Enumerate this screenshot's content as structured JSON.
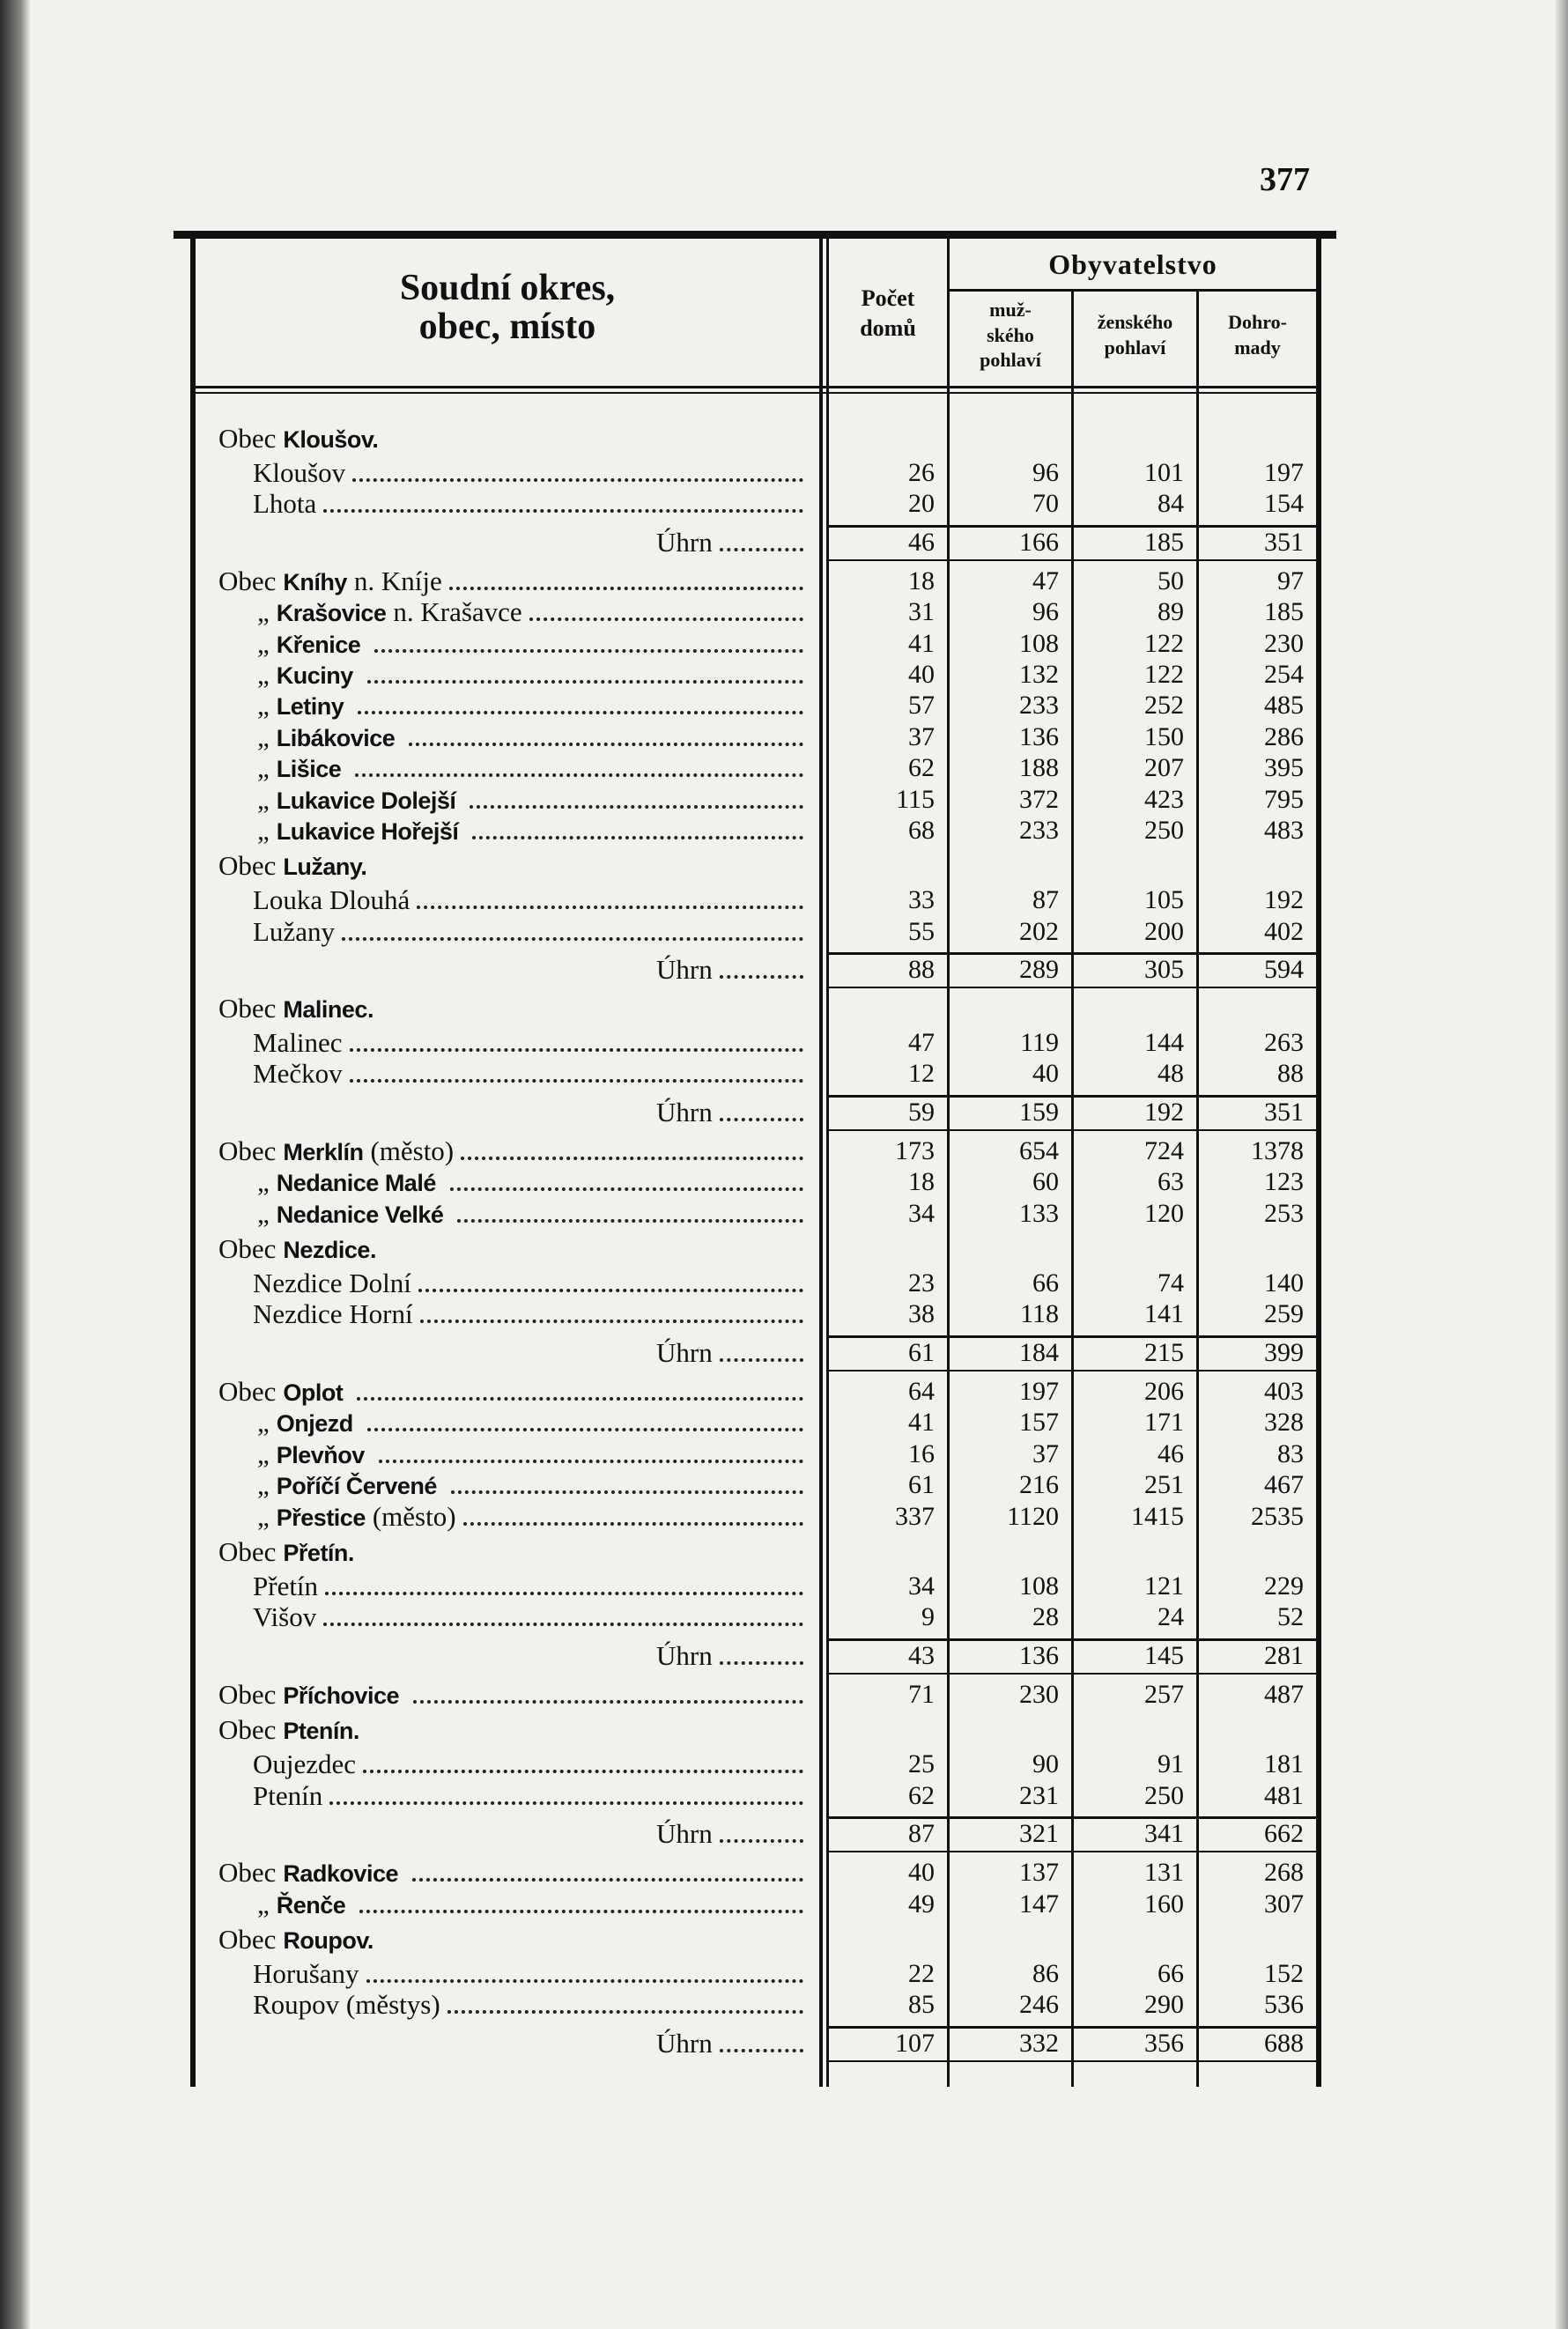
{
  "page_number": "377",
  "header": {
    "label": [
      "Soudní okres,",
      "obec, místo"
    ],
    "houses": [
      "Počet",
      "domů"
    ],
    "population": "Obyvatelstvo",
    "male": [
      "muž-",
      "ského",
      "pohlaví"
    ],
    "female": [
      "ženského",
      "pohlaví"
    ],
    "total": [
      "Dohro-",
      "mady"
    ]
  },
  "rows": [
    {
      "kind": "obec",
      "prefix": "Obec",
      "name": "Kloušov."
    },
    {
      "kind": "place",
      "text": "Kloušov",
      "values": [
        26,
        96,
        101,
        197
      ]
    },
    {
      "kind": "place",
      "text": "Lhota",
      "values": [
        20,
        70,
        84,
        154
      ]
    },
    {
      "kind": "sum",
      "text": "Úhrn",
      "values": [
        46,
        166,
        185,
        351
      ]
    },
    {
      "kind": "obec",
      "prefix": "Obec",
      "name": "Kníhy",
      "suffix": "n. Kníje",
      "values": [
        18,
        47,
        50,
        97
      ]
    },
    {
      "kind": "ditto",
      "prefix": "„",
      "name": "Krašovice",
      "suffix": "n. Krašavce",
      "values": [
        31,
        96,
        89,
        185
      ]
    },
    {
      "kind": "ditto",
      "prefix": "„",
      "name": "Křenice",
      "values": [
        41,
        108,
        122,
        230
      ]
    },
    {
      "kind": "ditto",
      "prefix": "„",
      "name": "Kuciny",
      "values": [
        40,
        132,
        122,
        254
      ]
    },
    {
      "kind": "ditto",
      "prefix": "„",
      "name": "Letiny",
      "values": [
        57,
        233,
        252,
        485
      ]
    },
    {
      "kind": "ditto",
      "prefix": "„",
      "name": "Libákovice",
      "values": [
        37,
        136,
        150,
        286
      ]
    },
    {
      "kind": "ditto",
      "prefix": "„",
      "name": "Lišice",
      "values": [
        62,
        188,
        207,
        395
      ]
    },
    {
      "kind": "ditto",
      "prefix": "„",
      "name": "Lukavice Dolejší",
      "values": [
        115,
        372,
        423,
        795
      ]
    },
    {
      "kind": "ditto",
      "prefix": "„",
      "name": "Lukavice Hořejší",
      "values": [
        68,
        233,
        250,
        483
      ]
    },
    {
      "kind": "obec",
      "prefix": "Obec",
      "name": "Lužany."
    },
    {
      "kind": "place",
      "text": "Louka Dlouhá",
      "values": [
        33,
        87,
        105,
        192
      ]
    },
    {
      "kind": "place",
      "text": "Lužany",
      "values": [
        55,
        202,
        200,
        402
      ]
    },
    {
      "kind": "sum",
      "text": "Úhrn",
      "values": [
        88,
        289,
        305,
        594
      ]
    },
    {
      "kind": "obec",
      "prefix": "Obec",
      "name": "Malinec."
    },
    {
      "kind": "place",
      "text": "Malinec",
      "values": [
        47,
        119,
        144,
        263
      ]
    },
    {
      "kind": "place",
      "text": "Mečkov",
      "values": [
        12,
        40,
        48,
        88
      ]
    },
    {
      "kind": "sum",
      "text": "Úhrn",
      "values": [
        59,
        159,
        192,
        351
      ]
    },
    {
      "kind": "obec",
      "prefix": "Obec",
      "name": "Merklín",
      "suffix": "(město)",
      "values": [
        173,
        654,
        724,
        1378
      ]
    },
    {
      "kind": "ditto",
      "prefix": "„",
      "name": "Nedanice Malé",
      "values": [
        18,
        60,
        63,
        123
      ]
    },
    {
      "kind": "ditto",
      "prefix": "„",
      "name": "Nedanice Velké",
      "values": [
        34,
        133,
        120,
        253
      ]
    },
    {
      "kind": "obec",
      "prefix": "Obec",
      "name": "Nezdice."
    },
    {
      "kind": "place",
      "text": "Nezdice Dolní",
      "values": [
        23,
        66,
        74,
        140
      ]
    },
    {
      "kind": "place",
      "text": "Nezdice Horní",
      "values": [
        38,
        118,
        141,
        259
      ]
    },
    {
      "kind": "sum",
      "text": "Úhrn",
      "values": [
        61,
        184,
        215,
        399
      ]
    },
    {
      "kind": "obec",
      "prefix": "Obec",
      "name": "Oplot",
      "values": [
        64,
        197,
        206,
        403
      ]
    },
    {
      "kind": "ditto",
      "prefix": "„",
      "name": "Onjezd",
      "values": [
        41,
        157,
        171,
        328
      ]
    },
    {
      "kind": "ditto",
      "prefix": "„",
      "name": "Plevňov",
      "values": [
        16,
        37,
        46,
        83
      ]
    },
    {
      "kind": "ditto",
      "prefix": "„",
      "name": "Poříčí Červené",
      "values": [
        61,
        216,
        251,
        467
      ]
    },
    {
      "kind": "ditto",
      "prefix": "„",
      "name": "Přestice",
      "suffix": "(město)",
      "values": [
        337,
        1120,
        1415,
        2535
      ]
    },
    {
      "kind": "obec",
      "prefix": "Obec",
      "name": "Přetín."
    },
    {
      "kind": "place",
      "text": "Přetín",
      "values": [
        34,
        108,
        121,
        229
      ]
    },
    {
      "kind": "place",
      "text": "Višov",
      "values": [
        9,
        28,
        24,
        52
      ]
    },
    {
      "kind": "sum",
      "text": "Úhrn",
      "values": [
        43,
        136,
        145,
        281
      ]
    },
    {
      "kind": "obec",
      "prefix": "Obec",
      "name": "Příchovice",
      "values": [
        71,
        230,
        257,
        487
      ]
    },
    {
      "kind": "obec",
      "prefix": "Obec",
      "name": "Ptenín."
    },
    {
      "kind": "place",
      "text": "Oujezdec",
      "values": [
        25,
        90,
        91,
        181
      ]
    },
    {
      "kind": "place",
      "text": "Ptenín",
      "values": [
        62,
        231,
        250,
        481
      ]
    },
    {
      "kind": "sum",
      "text": "Úhrn",
      "values": [
        87,
        321,
        341,
        662
      ]
    },
    {
      "kind": "obec",
      "prefix": "Obec",
      "name": "Radkovice",
      "values": [
        40,
        137,
        131,
        268
      ]
    },
    {
      "kind": "ditto",
      "prefix": "„",
      "name": "Řenče",
      "values": [
        49,
        147,
        160,
        307
      ]
    },
    {
      "kind": "obec",
      "prefix": "Obec",
      "name": "Roupov."
    },
    {
      "kind": "place",
      "text": "Horušany",
      "values": [
        22,
        86,
        66,
        152
      ]
    },
    {
      "kind": "place",
      "text": "Roupov (městys)",
      "values": [
        85,
        246,
        290,
        536
      ]
    },
    {
      "kind": "sum",
      "text": "Úhrn",
      "values": [
        107,
        332,
        356,
        688
      ]
    }
  ]
}
